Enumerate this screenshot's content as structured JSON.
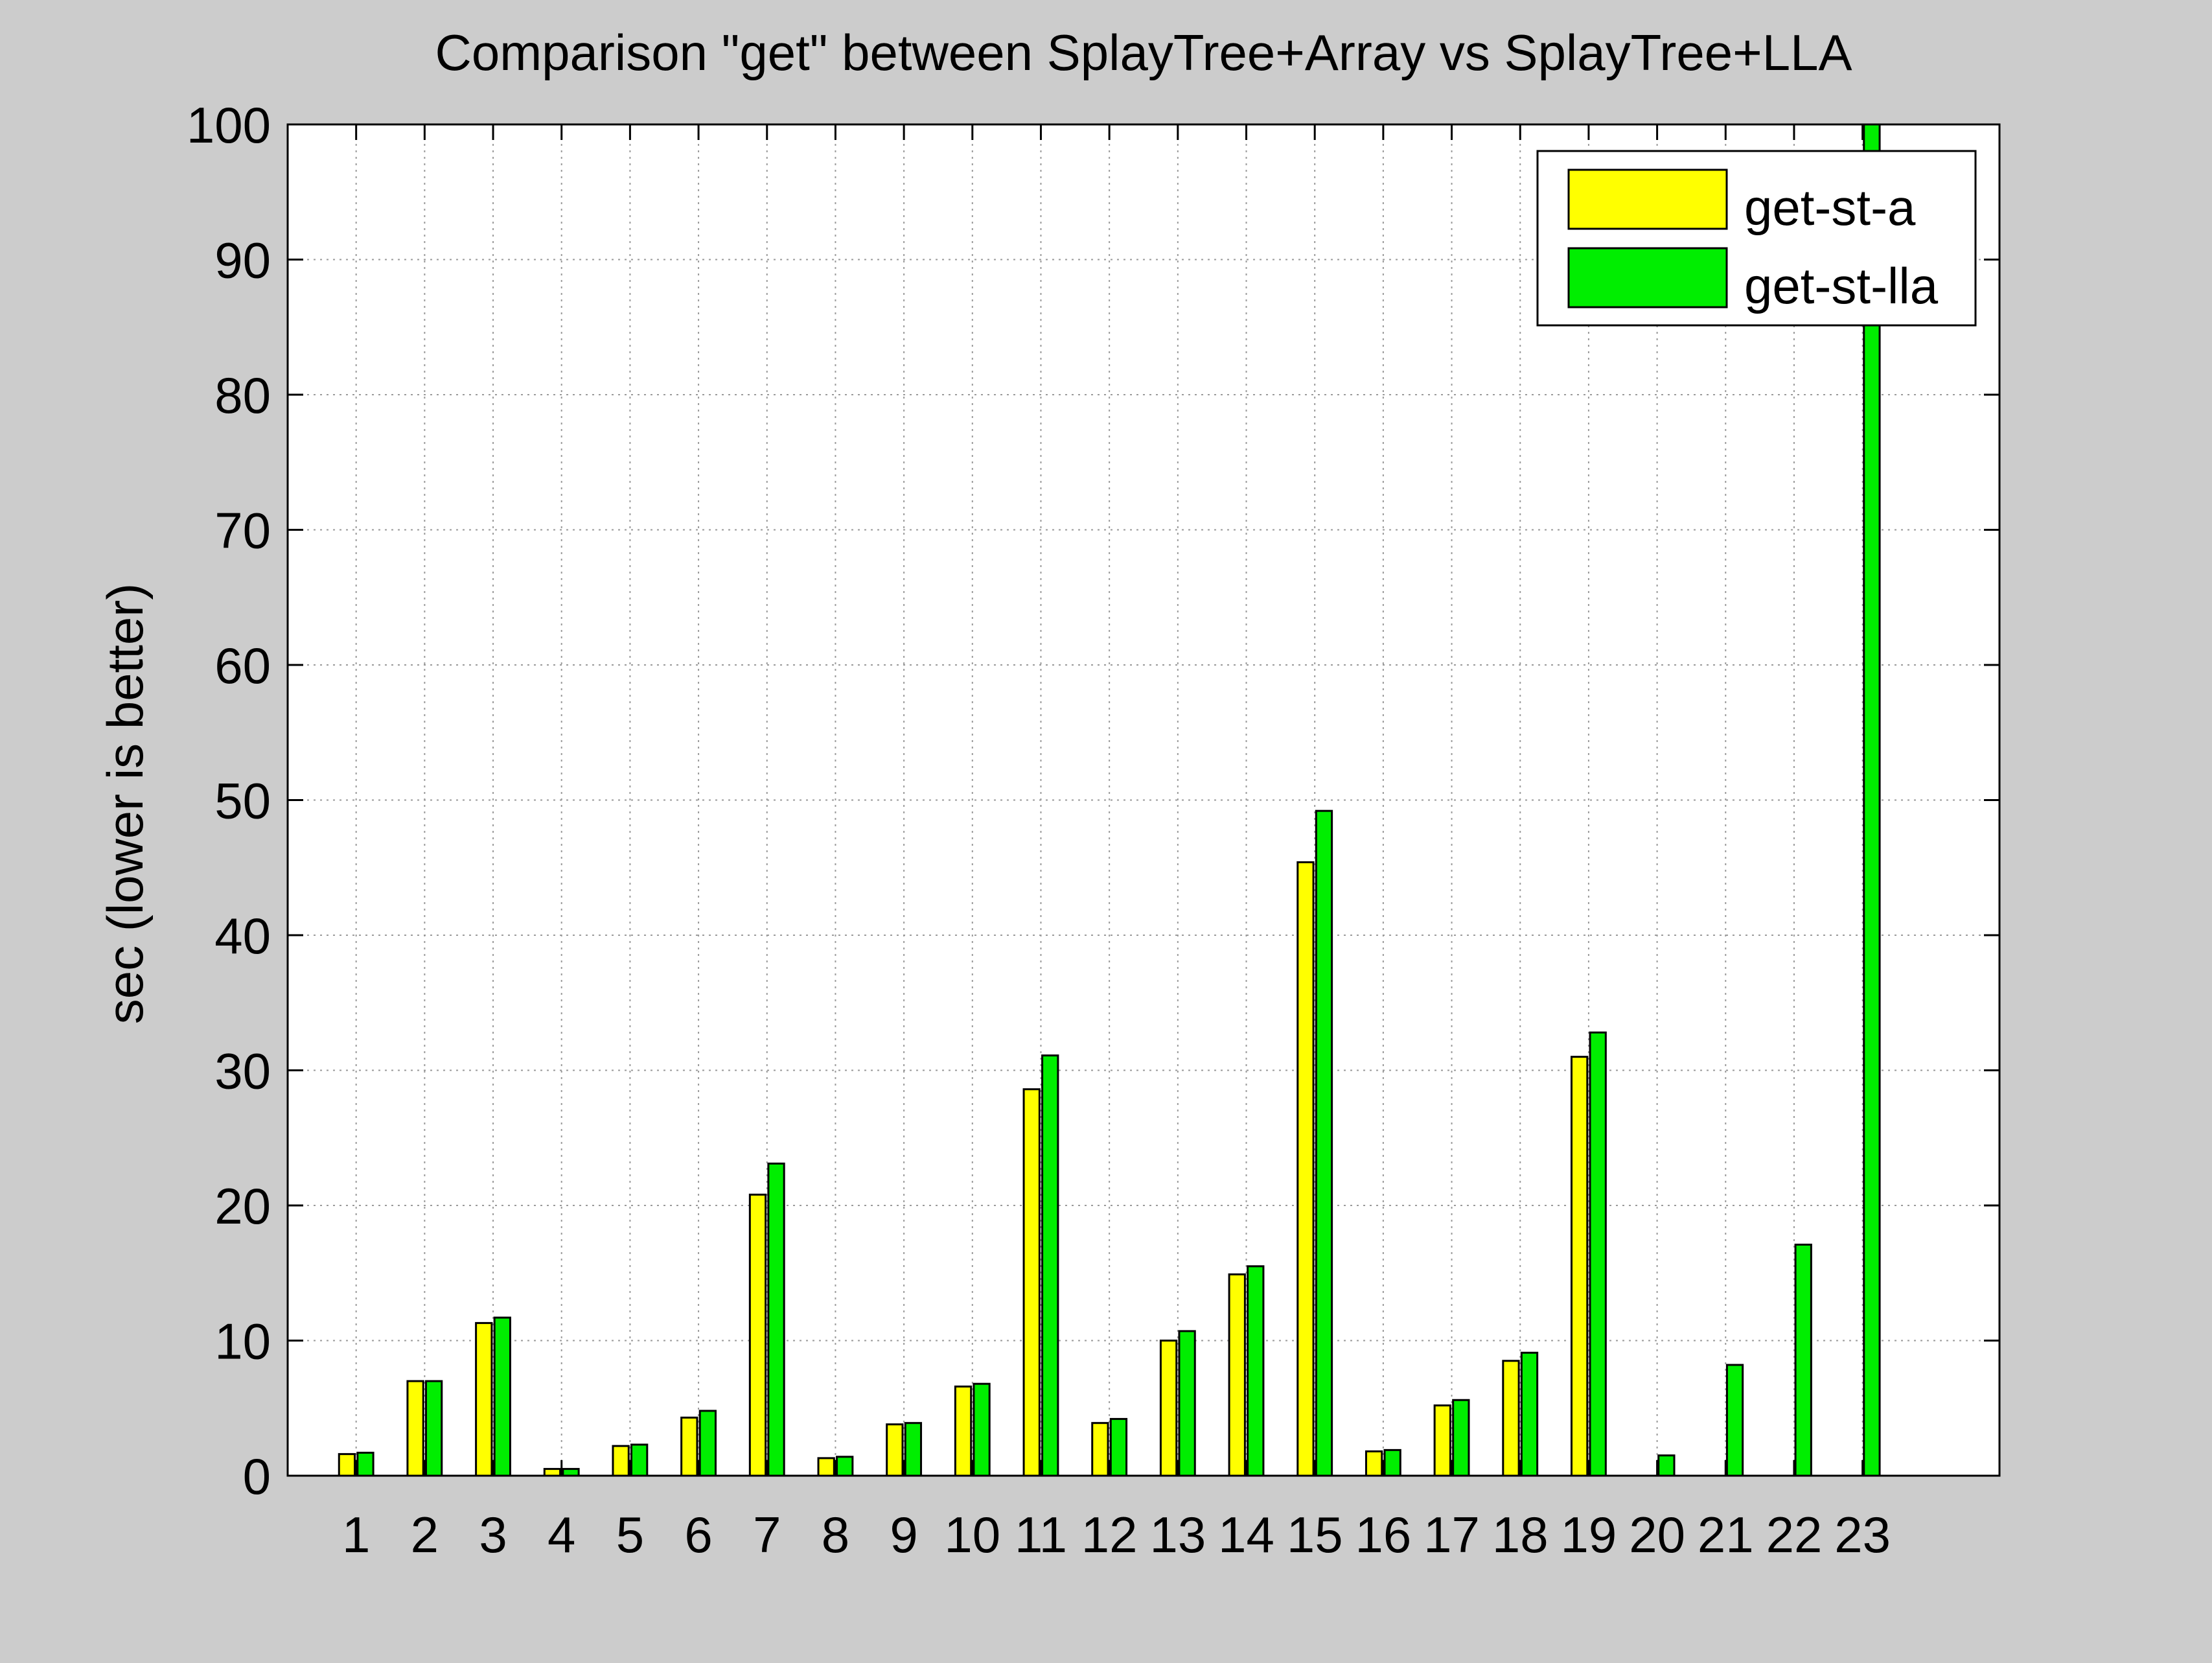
{
  "chart_data": {
    "type": "bar",
    "title": "Comparison \"get\" between SplayTree+Array vs SplayTree+LLA",
    "xlabel": "",
    "ylabel": "sec (lower is better)",
    "ylim": [
      0,
      100
    ],
    "xlim": [
      0,
      25
    ],
    "yticks": [
      "0",
      "10",
      "20",
      "30",
      "40",
      "50",
      "60",
      "70",
      "80",
      "90",
      "100"
    ],
    "categories": [
      "1",
      "2",
      "3",
      "4",
      "5",
      "6",
      "7",
      "8",
      "9",
      "10",
      "11",
      "12",
      "13",
      "14",
      "15",
      "16",
      "17",
      "18",
      "19",
      "20",
      "21",
      "22",
      "23"
    ],
    "grid": true,
    "legend_position": "top-right",
    "series": [
      {
        "name": "get-st-a",
        "color": "#ffff00",
        "values": [
          1.6,
          7.0,
          11.3,
          0.5,
          2.2,
          4.3,
          20.8,
          1.3,
          3.8,
          6.6,
          28.6,
          3.9,
          10.0,
          14.9,
          45.4,
          1.8,
          5.2,
          8.5,
          31.0,
          0,
          0,
          0,
          0
        ]
      },
      {
        "name": "get-st-lla",
        "color": "#00ee00",
        "values": [
          1.7,
          7.0,
          11.7,
          0.5,
          2.3,
          4.8,
          23.1,
          1.4,
          3.9,
          6.8,
          31.1,
          4.2,
          10.7,
          15.5,
          49.2,
          1.9,
          5.6,
          9.1,
          32.8,
          1.5,
          8.2,
          17.1,
          100
        ]
      }
    ]
  }
}
